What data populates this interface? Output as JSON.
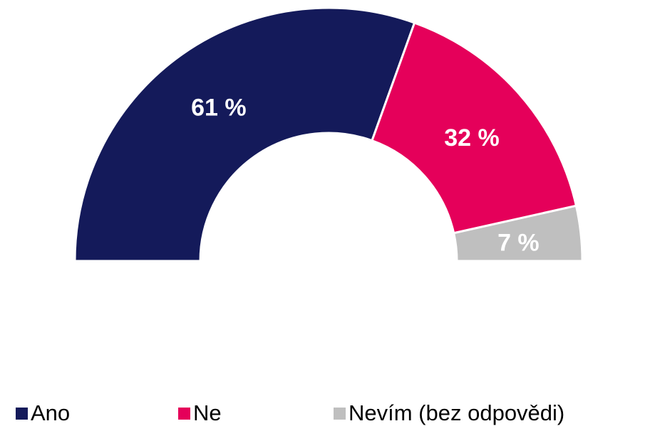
{
  "chart_data": {
    "type": "half-donut",
    "categories": [
      "Ano",
      "Ne",
      "Nevím (bez odpovědi)"
    ],
    "values": [
      61,
      32,
      7
    ],
    "value_labels": [
      "61 %",
      "32 %",
      "7 %"
    ],
    "colors": [
      "#141a5a",
      "#e5005a",
      "#bfbfbf"
    ]
  }
}
